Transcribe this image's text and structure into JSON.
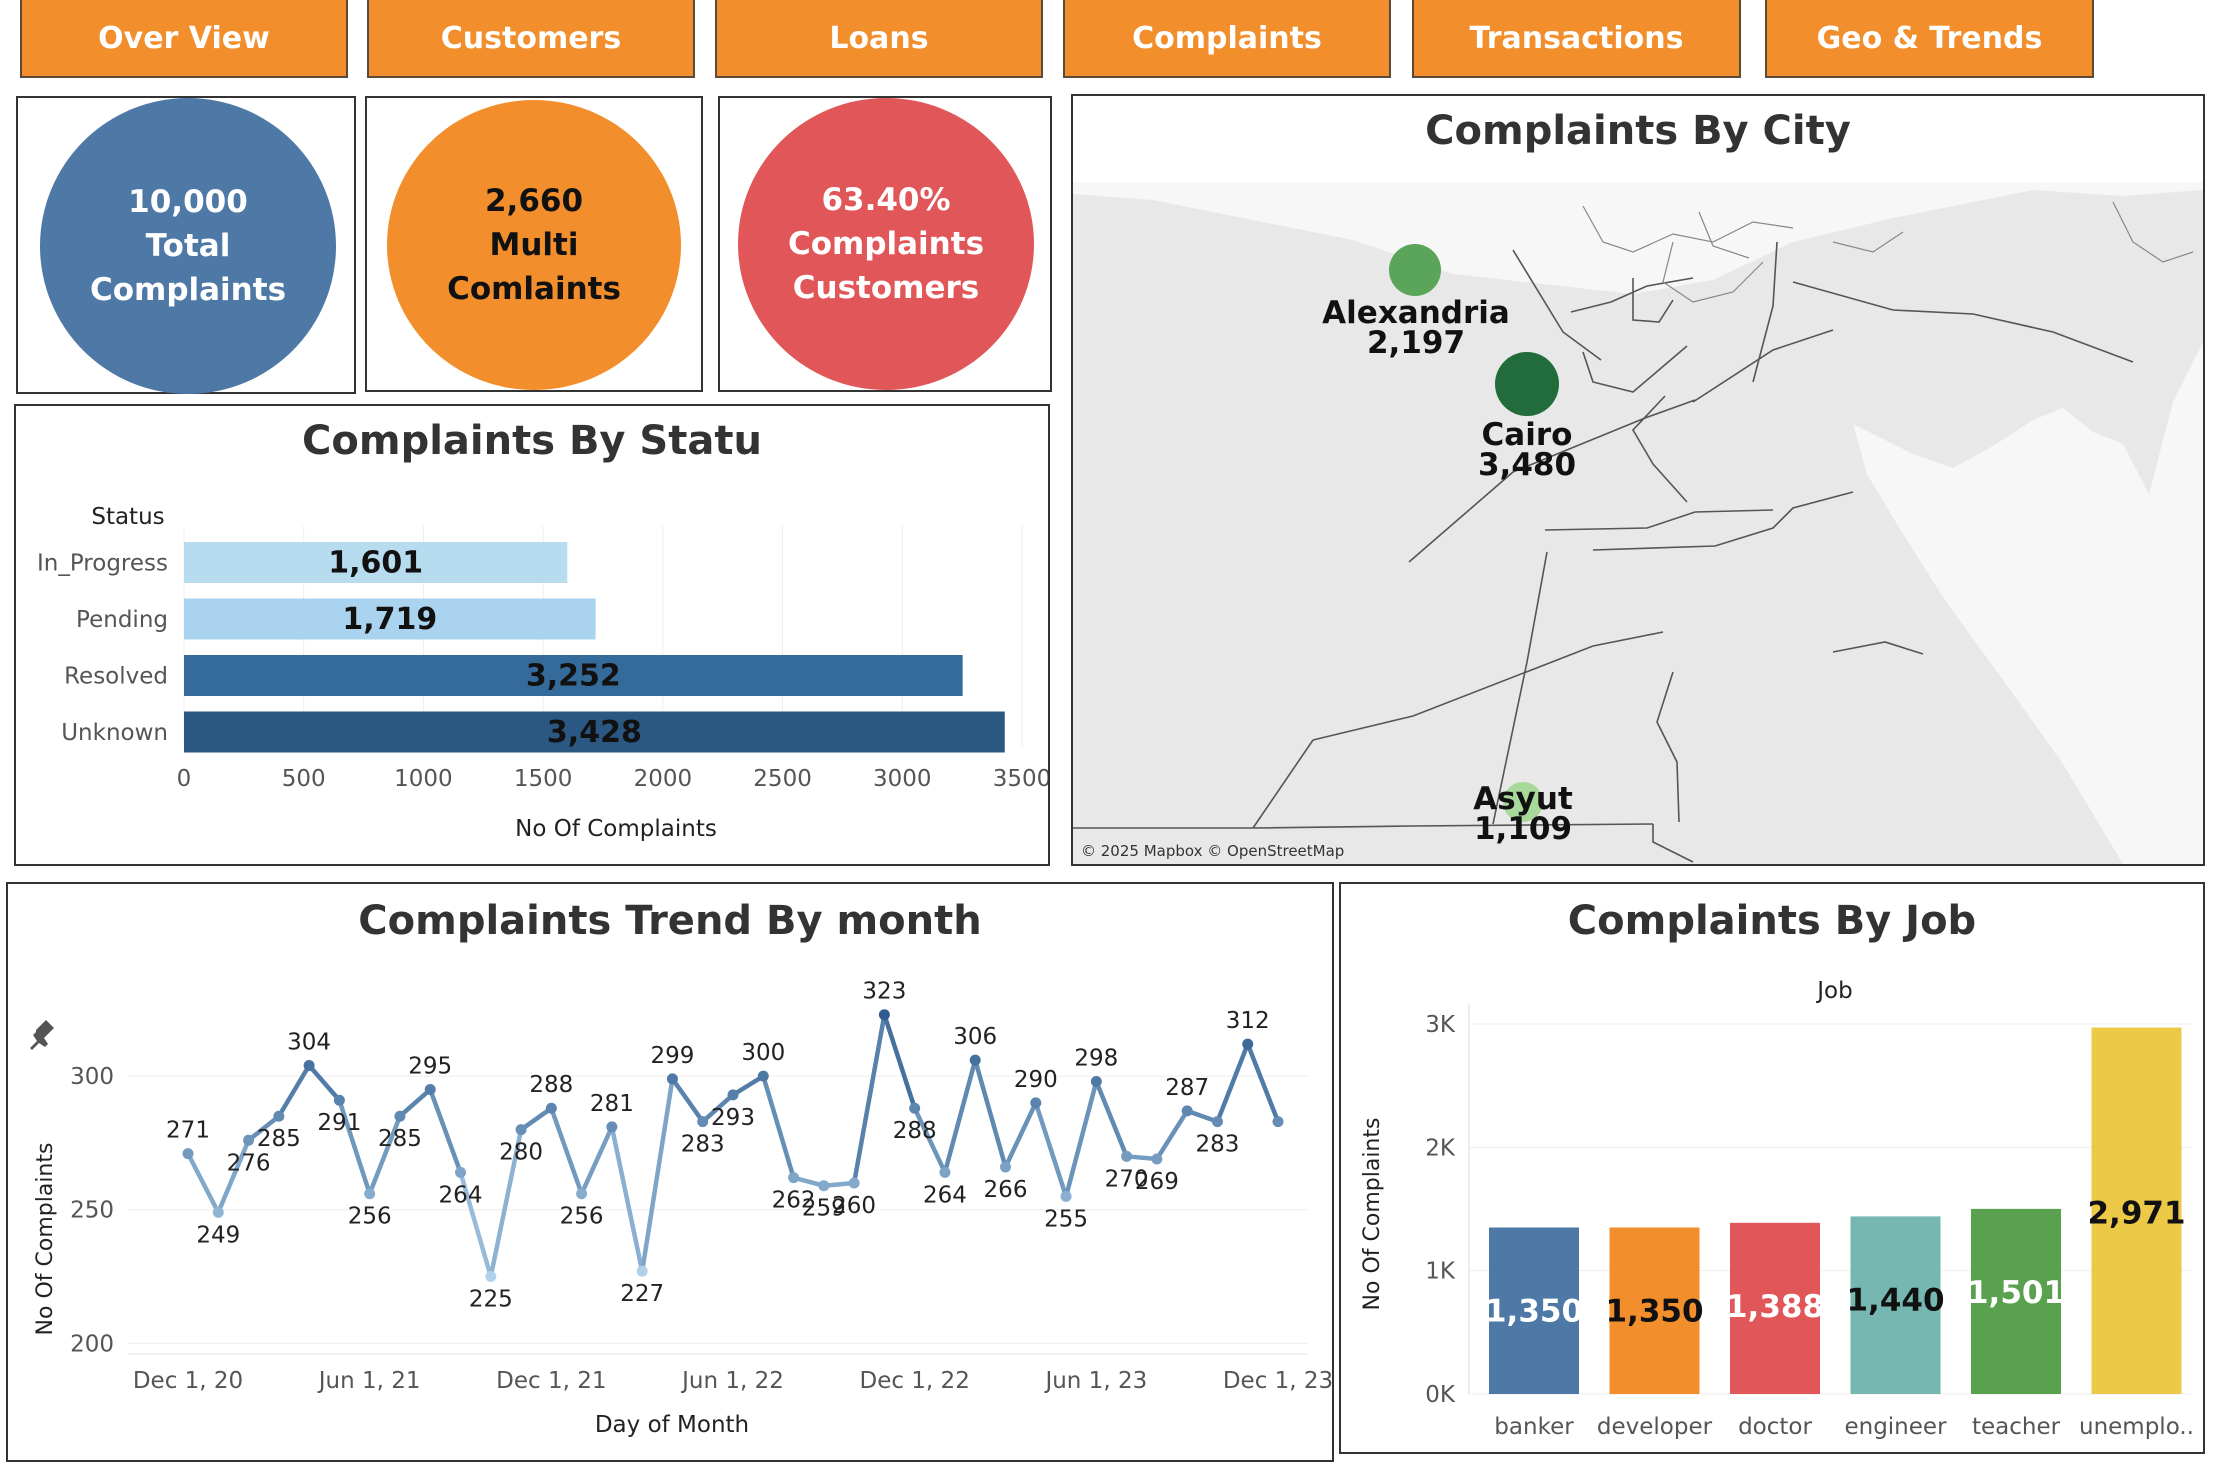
{
  "nav": {
    "items": [
      {
        "label": "Over View"
      },
      {
        "label": "Customers"
      },
      {
        "label": "Loans"
      },
      {
        "label": "Complaints"
      },
      {
        "label": "Transactions"
      },
      {
        "label": "Geo & Trends"
      }
    ]
  },
  "kpis": [
    {
      "value": "10,000",
      "line2": "Total",
      "line3": "Complaints",
      "color": "#4e79a7",
      "text_color": "#ffffff"
    },
    {
      "value": "2,660",
      "line2": "Multi",
      "line3": "Comlaints",
      "color": "#f28e2b",
      "text_color": "#111111"
    },
    {
      "value": "63.40%",
      "line2": "Complaints",
      "line3": "Customers",
      "color": "#e15759",
      "text_color": "#ffffff"
    }
  ],
  "status_chart": {
    "title": "Complaints By Statu",
    "chart_data": {
      "type": "bar",
      "orientation": "horizontal",
      "category_header": "Status",
      "categories": [
        "In_Progress",
        "Pending",
        "Resolved",
        "Unknown"
      ],
      "values": [
        1601,
        1719,
        3252,
        3428
      ],
      "value_labels": [
        "1,601",
        "1,719",
        "3,252",
        "3,428"
      ],
      "colors": [
        "#b7dcf0",
        "#a9d3ee",
        "#356b9a",
        "#2b5783"
      ],
      "xlabel": "No Of Complaints",
      "xticks": [
        0,
        500,
        1000,
        1500,
        2000,
        2500,
        3000,
        3500
      ],
      "xlim": [
        0,
        3500
      ]
    }
  },
  "city_map": {
    "title": "Complaints By City",
    "attribution": "© 2025 Mapbox © OpenStreetMap",
    "cities": [
      {
        "name": "Alexandria",
        "value": "2,197",
        "color": "#5aa55a"
      },
      {
        "name": "Cairo",
        "value": "3,480",
        "color": "#226b3a"
      },
      {
        "name": "Asyut",
        "value": "1,109",
        "color": "#a9d99a"
      }
    ]
  },
  "trend_chart": {
    "title": "Complaints Trend By month",
    "chart_data": {
      "type": "line",
      "xlabel": "Day of Month",
      "ylabel": "No Of Complaints",
      "xtick_labels": [
        "Dec 1, 20",
        "Jun 1, 21",
        "Dec 1, 21",
        "Jun 1, 22",
        "Dec 1, 22",
        "Jun 1, 23",
        "Dec 1, 23"
      ],
      "yticks": [
        200,
        250,
        300
      ],
      "ylim": [
        196,
        336
      ],
      "x": [
        "2020-12",
        "2021-01",
        "2021-02",
        "2021-03",
        "2021-04",
        "2021-05",
        "2021-06",
        "2021-07",
        "2021-08",
        "2021-09",
        "2021-10",
        "2021-11",
        "2021-12",
        "2022-01",
        "2022-02",
        "2022-03",
        "2022-04",
        "2022-05",
        "2022-06",
        "2022-07",
        "2022-08",
        "2022-09",
        "2022-10",
        "2022-11",
        "2022-12",
        "2023-01",
        "2023-02",
        "2023-03",
        "2023-04",
        "2023-05",
        "2023-06",
        "2023-07",
        "2023-08",
        "2023-09",
        "2023-10",
        "2023-11",
        "2023-12"
      ],
      "values": [
        271,
        249,
        276,
        285,
        304,
        291,
        256,
        285,
        295,
        264,
        225,
        280,
        288,
        256,
        281,
        227,
        299,
        283,
        293,
        300,
        262,
        259,
        260,
        323,
        288,
        264,
        306,
        266,
        290,
        255,
        298,
        270,
        269,
        287,
        283,
        312,
        283
      ],
      "labeled_values": [
        271,
        249,
        276,
        285,
        304,
        291,
        256,
        285,
        295,
        264,
        225,
        280,
        288,
        256,
        281,
        227,
        299,
        283,
        293,
        300,
        262,
        259,
        260,
        323,
        288,
        264,
        306,
        266,
        290,
        255,
        298,
        270,
        269,
        287,
        283,
        312
      ]
    }
  },
  "job_chart": {
    "title": "Complaints By Job",
    "chart_data": {
      "type": "bar",
      "category_header": "Job",
      "categories": [
        "banker",
        "developer",
        "doctor",
        "engineer",
        "teacher",
        "unemplo.."
      ],
      "values": [
        1350,
        1350,
        1388,
        1440,
        1501,
        2971
      ],
      "value_labels": [
        "1,350",
        "1,350",
        "1,388",
        "1,440",
        "1,501",
        "2,971"
      ],
      "colors": [
        "#4e79a7",
        "#f28e2b",
        "#e15759",
        "#76b7b2",
        "#59a14f",
        "#edc948"
      ],
      "label_colors": [
        "#ffffff",
        "#111111",
        "#ffffff",
        "#111111",
        "#ffffff",
        "#111111"
      ],
      "ylabel": "No Of Complaints",
      "ytick_labels": [
        "0K",
        "1K",
        "2K",
        "3K"
      ],
      "ylim": [
        0,
        3000
      ]
    }
  }
}
